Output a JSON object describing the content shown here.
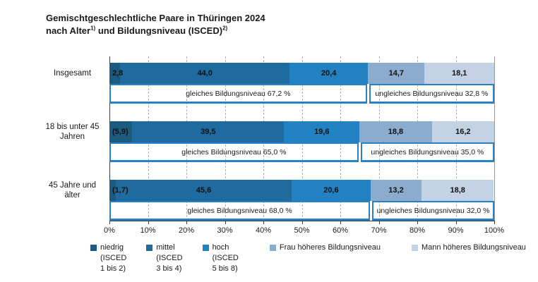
{
  "title": {
    "line1": "Gemischtgeschlechtliche Paare in Thüringen 2024",
    "line2_text1": "nach Alter",
    "line2_sup1": "1)",
    "line2_text2": " und Bildungsniveau (ISCED)",
    "line2_sup2": "2)"
  },
  "colors": {
    "bracket_border": "#2980c4",
    "axis": "#3c3c3c",
    "grid": "#b0b0b0"
  },
  "chart_data": {
    "type": "bar",
    "orientation": "horizontal",
    "stacked": true,
    "unit": "percent",
    "title": "Gemischtgeschlechtliche Paare in Thüringen 2024 nach Alter und Bildungsniveau (ISCED)",
    "x_axis": {
      "min": 0,
      "max": 100,
      "tick_labels": [
        "0%",
        "10%",
        "20%",
        "30%",
        "40%",
        "50%",
        "60%",
        "70%",
        "80%",
        "90%",
        "100%"
      ],
      "grid": "dashed-vertical"
    },
    "legend_position": "bottom",
    "series": [
      {
        "name": "niedrig (ISCED 1 bis 2)",
        "legend_lines": [
          "niedrig",
          "(ISCED",
          "1 bis 2)"
        ],
        "color": "#1d5a80",
        "values": [
          2.8,
          5.9,
          1.7
        ]
      },
      {
        "name": "mittel (ISCED 3 bis 4)",
        "legend_lines": [
          "mittel",
          "(ISCED",
          "3 bis 4)"
        ],
        "color": "#1f6a9e",
        "values": [
          44.0,
          39.5,
          45.6
        ]
      },
      {
        "name": "hoch (ISCED 5 bis 8)",
        "legend_lines": [
          "hoch",
          "(ISCED",
          "5 bis 8)"
        ],
        "color": "#2181c1",
        "values": [
          20.4,
          19.6,
          20.6
        ]
      },
      {
        "name": "Frau höheres Bildungsniveau",
        "legend_lines": [
          "Frau höheres Bildungsniveau"
        ],
        "color": "#8cacce",
        "values": [
          14.7,
          18.8,
          13.2
        ]
      },
      {
        "name": "Mann höheres Bildungsniveau",
        "legend_lines": [
          "Mann höheres Bildungsniveau"
        ],
        "color": "#c3d2e5",
        "values": [
          18.1,
          16.2,
          18.8
        ]
      }
    ],
    "rows": [
      {
        "category": "Insgesamt",
        "category_lines": [
          "Insgesamt"
        ],
        "value_labels": [
          "2,8",
          "44,0",
          "20,4",
          "14,7",
          "18,1"
        ],
        "gleiches_value": 67.2,
        "gleiches_label": "gleiches Bildungsniveau 67,2 %",
        "ungleiches_value": 32.8,
        "ungleiches_label": "ungleiches Bildungsniveau 32,8 %"
      },
      {
        "category": "18 bis unter 45 Jahren",
        "category_lines": [
          "18 bis unter 45",
          "Jahren"
        ],
        "value_labels": [
          "(5,9)",
          "39,5",
          "19,6",
          "18,8",
          "16,2"
        ],
        "gleiches_value": 65.0,
        "gleiches_label": "gleiches Bildungsniveau 65,0 %",
        "ungleiches_value": 35.0,
        "ungleiches_label": "ungleiches Bildungsniveau 35,0 %"
      },
      {
        "category": "45 Jahre und älter",
        "category_lines": [
          "45 Jahre und",
          "älter"
        ],
        "value_labels": [
          "(1,7)",
          "45,6",
          "20,6",
          "13,2",
          "18,8"
        ],
        "gleiches_value": 68.0,
        "gleiches_label": "gleiches Bildungsniveau 68,0 %",
        "ungleiches_value": 32.0,
        "ungleiches_label": "ungleiches Bildungsniveau 32,0 %"
      }
    ]
  }
}
